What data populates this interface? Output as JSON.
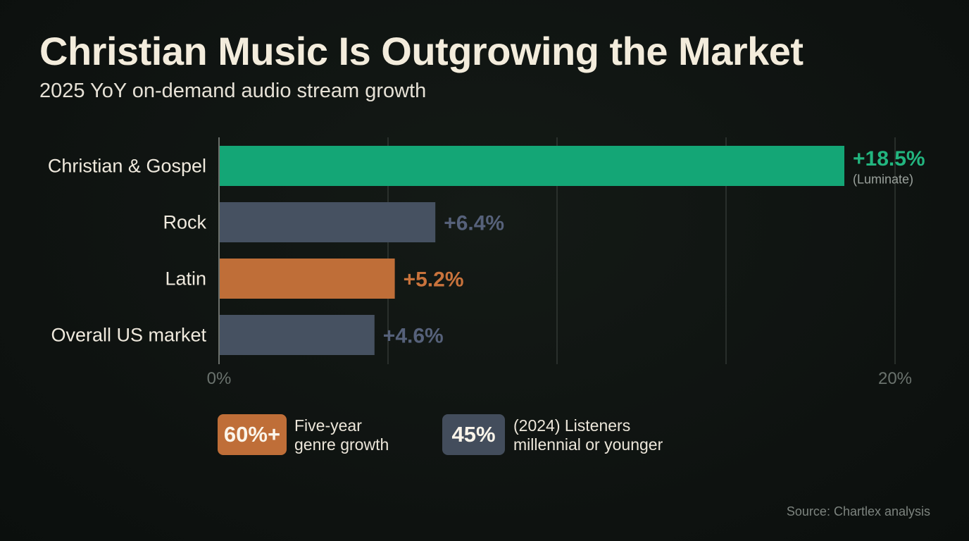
{
  "title": "Christian Music Is Outgrowing the Market",
  "subtitle": "2025 YoY on-demand audio stream growth",
  "chart_data": {
    "type": "bar",
    "orientation": "horizontal",
    "categories": [
      "Christian & Gospel",
      "Rock",
      "Latin",
      "Overall US market"
    ],
    "values": [
      18.5,
      6.4,
      5.2,
      4.6
    ],
    "value_labels": [
      "+18.5%",
      "+6.4%",
      "+5.2%",
      "+4.6%"
    ],
    "annotations": [
      {
        "category": "Christian & Gospel",
        "text": "(Luminate)"
      }
    ],
    "colors": [
      "#14a676",
      "#465161",
      "#bf6e38",
      "#465161"
    ],
    "label_colors": [
      "#22b57f",
      "#56617a",
      "#c9733c",
      "#56617a"
    ],
    "xlim": [
      0,
      20
    ],
    "x_tick_labels": [
      "0%",
      "20%"
    ],
    "gridlines": [
      0,
      5,
      10,
      15,
      20
    ],
    "grid": true
  },
  "kpis": [
    {
      "value": "60%+",
      "line1": "Five-year",
      "line2": "genre growth",
      "color": "#bf6e38"
    },
    {
      "value": "45%",
      "line1": "(2024) Listeners",
      "line2": "millennial or younger",
      "color": "#434d5c"
    }
  ],
  "source": "Source: Chartlex analysis"
}
